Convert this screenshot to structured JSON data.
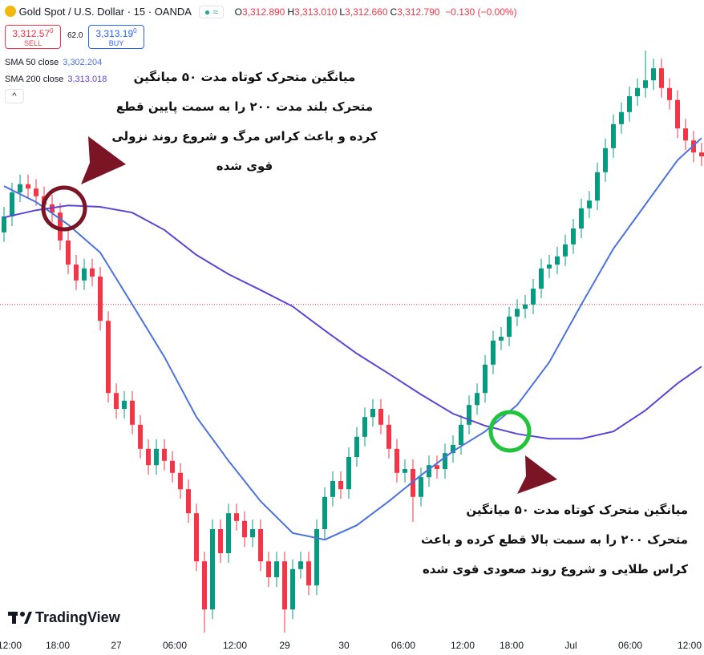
{
  "chart_data": {
    "type": "candlestick",
    "title": "Gold Spot / U.S. Dollar · 15 · OANDA",
    "ohlc_header": [
      {
        "key": "O",
        "value": "3,312.890"
      },
      {
        "key": "H",
        "value": "3,313.010"
      },
      {
        "key": "L",
        "value": "3,312.660"
      },
      {
        "key": "C",
        "value": "3,312.790"
      }
    ],
    "change": "−0.130 (−0.00%)",
    "sell": {
      "price": "3,312.57",
      "sup": "0",
      "label": "SELL"
    },
    "spread": "62.0",
    "buy": {
      "price": "3,313.19",
      "sup": "0",
      "label": "BUY"
    },
    "watermark": "TradingView",
    "up_color": "#089981",
    "down_color": "#f23645",
    "x": [
      0,
      1,
      2,
      3,
      4,
      5,
      6,
      7,
      8,
      9,
      10,
      11,
      12,
      13,
      14,
      15,
      16,
      17,
      18,
      19,
      20,
      21,
      22,
      23,
      24,
      25,
      26,
      27,
      28,
      29,
      30,
      31,
      32,
      33,
      34,
      35,
      36,
      37,
      38,
      39,
      40,
      41,
      42,
      43,
      44,
      45,
      46,
      47,
      48,
      49,
      50,
      51,
      52,
      53,
      54,
      55,
      56,
      57,
      58,
      59,
      60,
      61,
      62,
      63,
      64,
      65,
      66,
      67,
      68,
      69,
      70,
      71,
      72,
      73,
      74,
      75,
      76,
      77,
      78,
      79,
      80,
      81,
      82,
      83,
      84,
      85,
      86,
      87
    ],
    "open": [
      3333.7,
      3337.0,
      3342.0,
      3343.7,
      3342.8,
      3341.2,
      3339.5,
      3337.8,
      3332.0,
      3327.0,
      3323.7,
      3326.2,
      3324.5,
      3315.3,
      3300.3,
      3297.0,
      3298.7,
      3293.7,
      3288.7,
      3285.3,
      3288.7,
      3286.2,
      3283.7,
      3280.3,
      3275.3,
      3265.3,
      3255.3,
      3272.0,
      3267.0,
      3275.3,
      3273.7,
      3270.3,
      3272.0,
      3265.3,
      3262.0,
      3265.3,
      3255.3,
      3263.7,
      3265.3,
      3260.3,
      3272.0,
      3278.7,
      3282.0,
      3280.3,
      3287.0,
      3291.2,
      3295.3,
      3297.0,
      3293.7,
      3288.7,
      3283.7,
      3284.5,
      3278.7,
      3282.8,
      3285.3,
      3284.5,
      3287.8,
      3289.5,
      3293.7,
      3297.8,
      3300.3,
      3306.2,
      3311.2,
      3312.0,
      3316.2,
      3317.8,
      3318.7,
      3322.0,
      3326.2,
      3327.0,
      3328.7,
      3331.2,
      3334.5,
      3338.7,
      3340.3,
      3346.2,
      3351.2,
      3356.2,
      3358.7,
      3362.0,
      3363.7,
      3365.3,
      3367.8,
      3363.7,
      3361.2,
      3355.3,
      3352.8,
      3350.3
    ],
    "high": [
      3339.0,
      3344.0,
      3345.7,
      3345.7,
      3344.8,
      3343.2,
      3341.5,
      3339.8,
      3334.0,
      3329.0,
      3328.2,
      3328.2,
      3326.5,
      3317.3,
      3302.3,
      3300.7,
      3300.7,
      3295.7,
      3290.7,
      3290.7,
      3290.7,
      3288.2,
      3285.7,
      3282.3,
      3277.3,
      3267.3,
      3274.0,
      3274.0,
      3277.3,
      3277.3,
      3275.7,
      3274.0,
      3274.0,
      3267.3,
      3267.3,
      3267.3,
      3265.7,
      3267.3,
      3267.3,
      3274.0,
      3280.7,
      3284.0,
      3284.0,
      3289.0,
      3293.2,
      3297.3,
      3299.0,
      3299.0,
      3295.7,
      3290.7,
      3286.5,
      3286.5,
      3284.8,
      3287.3,
      3287.3,
      3289.8,
      3291.5,
      3295.7,
      3299.8,
      3302.3,
      3308.2,
      3313.2,
      3314.0,
      3318.2,
      3319.8,
      3320.7,
      3324.0,
      3328.2,
      3329.0,
      3330.7,
      3333.2,
      3336.5,
      3340.7,
      3342.3,
      3348.2,
      3353.2,
      3358.2,
      3360.7,
      3364.0,
      3365.7,
      3371.5,
      3369.8,
      3369.8,
      3365.7,
      3363.2,
      3357.3,
      3354.8,
      3352.3
    ],
    "low": [
      3331.7,
      3335.0,
      3340.0,
      3340.8,
      3339.2,
      3337.5,
      3335.8,
      3330.0,
      3325.0,
      3321.7,
      3321.7,
      3322.5,
      3313.3,
      3298.3,
      3295.0,
      3295.0,
      3291.7,
      3286.7,
      3283.3,
      3283.3,
      3284.2,
      3281.7,
      3278.3,
      3273.3,
      3263.3,
      3250.5,
      3253.3,
      3265.0,
      3265.0,
      3271.7,
      3268.3,
      3268.3,
      3263.3,
      3260.0,
      3260.0,
      3250.5,
      3253.3,
      3261.7,
      3258.3,
      3258.3,
      3270.0,
      3276.7,
      3278.3,
      3278.3,
      3285.0,
      3289.2,
      3293.3,
      3291.7,
      3286.7,
      3281.7,
      3281.7,
      3273.5,
      3276.7,
      3280.8,
      3282.5,
      3282.5,
      3285.8,
      3287.5,
      3291.7,
      3295.8,
      3298.3,
      3304.2,
      3309.2,
      3310.0,
      3314.2,
      3315.8,
      3316.7,
      3320.0,
      3324.2,
      3325.0,
      3326.7,
      3329.2,
      3332.5,
      3336.7,
      3338.3,
      3344.2,
      3349.2,
      3354.2,
      3356.7,
      3360.0,
      3361.7,
      3363.3,
      3361.7,
      3359.2,
      3353.3,
      3350.8,
      3348.3,
      3347.5
    ],
    "close": [
      3337.0,
      3342.0,
      3343.7,
      3342.8,
      3341.2,
      3339.5,
      3337.8,
      3332.0,
      3327.0,
      3323.7,
      3326.2,
      3324.5,
      3315.3,
      3300.3,
      3297.0,
      3298.7,
      3293.7,
      3288.7,
      3285.3,
      3288.7,
      3286.2,
      3283.7,
      3280.3,
      3275.3,
      3265.3,
      3255.3,
      3272.0,
      3267.0,
      3275.3,
      3273.7,
      3270.3,
      3272.0,
      3265.3,
      3262.0,
      3265.3,
      3255.3,
      3263.7,
      3265.3,
      3260.3,
      3272.0,
      3278.7,
      3282.0,
      3280.3,
      3287.0,
      3291.2,
      3295.3,
      3297.0,
      3293.7,
      3288.7,
      3283.7,
      3284.5,
      3278.7,
      3282.8,
      3285.3,
      3284.5,
      3287.8,
      3289.5,
      3293.7,
      3297.8,
      3300.3,
      3306.2,
      3311.2,
      3312.0,
      3316.2,
      3317.8,
      3318.7,
      3322.0,
      3326.2,
      3327.0,
      3328.7,
      3331.2,
      3334.5,
      3338.7,
      3340.3,
      3346.2,
      3351.2,
      3356.2,
      3358.7,
      3362.0,
      3363.7,
      3365.3,
      3367.8,
      3363.7,
      3361.2,
      3355.3,
      3352.8,
      3350.3,
      3349.5
    ],
    "series": [
      {
        "name": "SMA 50 close",
        "value_label": "3,302.204",
        "color": "#4a72e0",
        "x": [
          0,
          4,
          8,
          12,
          16,
          20,
          24,
          28,
          32,
          36,
          40,
          44,
          48,
          52,
          56,
          60,
          64,
          68,
          72,
          76,
          80,
          84,
          87
        ],
        "values": [
          3343.3,
          3340.0,
          3335.3,
          3329.5,
          3318.7,
          3307.8,
          3295.3,
          3286.2,
          3277.8,
          3271.2,
          3269.8,
          3272.8,
          3277.8,
          3283.2,
          3288.2,
          3292.3,
          3297.8,
          3306.7,
          3318.7,
          3330.3,
          3339.5,
          3348.7,
          3353.3
        ]
      },
      {
        "name": "SMA 200 close",
        "value_label": "3,313.018",
        "color": "#5b45d8",
        "x": [
          0,
          4,
          8,
          12,
          16,
          20,
          24,
          28,
          32,
          36,
          40,
          44,
          48,
          52,
          56,
          60,
          64,
          68,
          72,
          76,
          80,
          84,
          87
        ],
        "values": [
          3336.8,
          3338.3,
          3339.3,
          3339.0,
          3337.8,
          3334.2,
          3329.0,
          3325.0,
          3321.7,
          3318.3,
          3313.3,
          3308.5,
          3304.3,
          3300.0,
          3296.0,
          3293.5,
          3291.8,
          3290.8,
          3290.8,
          3292.3,
          3296.7,
          3302.3,
          3305.8
        ]
      }
    ],
    "last_price": 3318.7,
    "xlim": [
      -0.5,
      87.3
    ],
    "ylim": [
      3250,
      3382
    ],
    "xticks": [
      {
        "value": 0.7,
        "label": "12:00"
      },
      {
        "value": 6.7,
        "label": "18:00"
      },
      {
        "value": 14,
        "label": "27"
      },
      {
        "value": 21.3,
        "label": "06:00"
      },
      {
        "value": 28.8,
        "label": "12:00"
      },
      {
        "value": 35,
        "label": "29"
      },
      {
        "value": 42.4,
        "label": "30"
      },
      {
        "value": 49.8,
        "label": "06:00"
      },
      {
        "value": 57.2,
        "label": "12:00"
      },
      {
        "value": 63.3,
        "label": "18:00"
      },
      {
        "value": 70.7,
        "label": "Jul"
      },
      {
        "value": 78.1,
        "label": "06:00"
      },
      {
        "value": 85.5,
        "label": "12:00"
      }
    ],
    "annotations": [
      {
        "lines": [
          "میانگین متحرک کوتاه مدت ۵۰ میانگین",
          "متحرک بلند مدت ۲۰۰ را به سمت پایین قطع",
          "کرده و باعث کراس مرگ و شروع روند نزولی",
          "قوی شده"
        ]
      },
      {
        "lines": [
          "میانگین متحرک کوتاه مدت ۵۰ میانگین",
          "متحرک ۲۰۰ را به سمت بالا قطع کرده و باعث",
          "کراس طلایی و شروع روند صعودی قوی شده"
        ]
      }
    ]
  }
}
